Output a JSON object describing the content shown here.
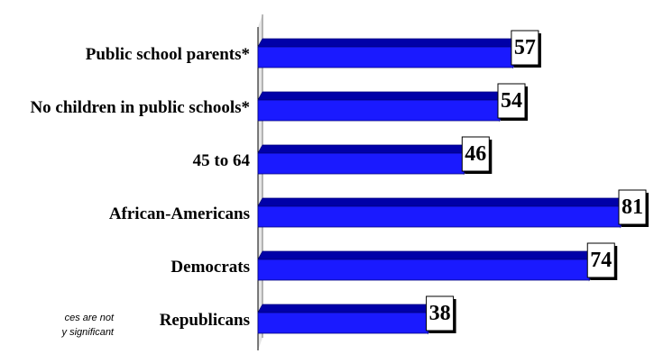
{
  "chart_data": {
    "type": "bar",
    "orientation": "horizontal",
    "categories": [
      "Public school parents*",
      "No children in public schools*",
      "45 to 64",
      "African-Americans",
      "Democrats",
      "Republicans"
    ],
    "values": [
      57,
      54,
      46,
      81,
      74,
      38
    ],
    "title": "",
    "xlabel": "",
    "ylabel": "",
    "xlim": [
      0,
      81
    ],
    "grid": false,
    "legend": "none",
    "bar_color": "#1a1aff",
    "bar_top_color": "#0000a8",
    "bar_outline_color": "#000080"
  },
  "footnote": {
    "line1": "ces are not",
    "line2": "y significant"
  }
}
